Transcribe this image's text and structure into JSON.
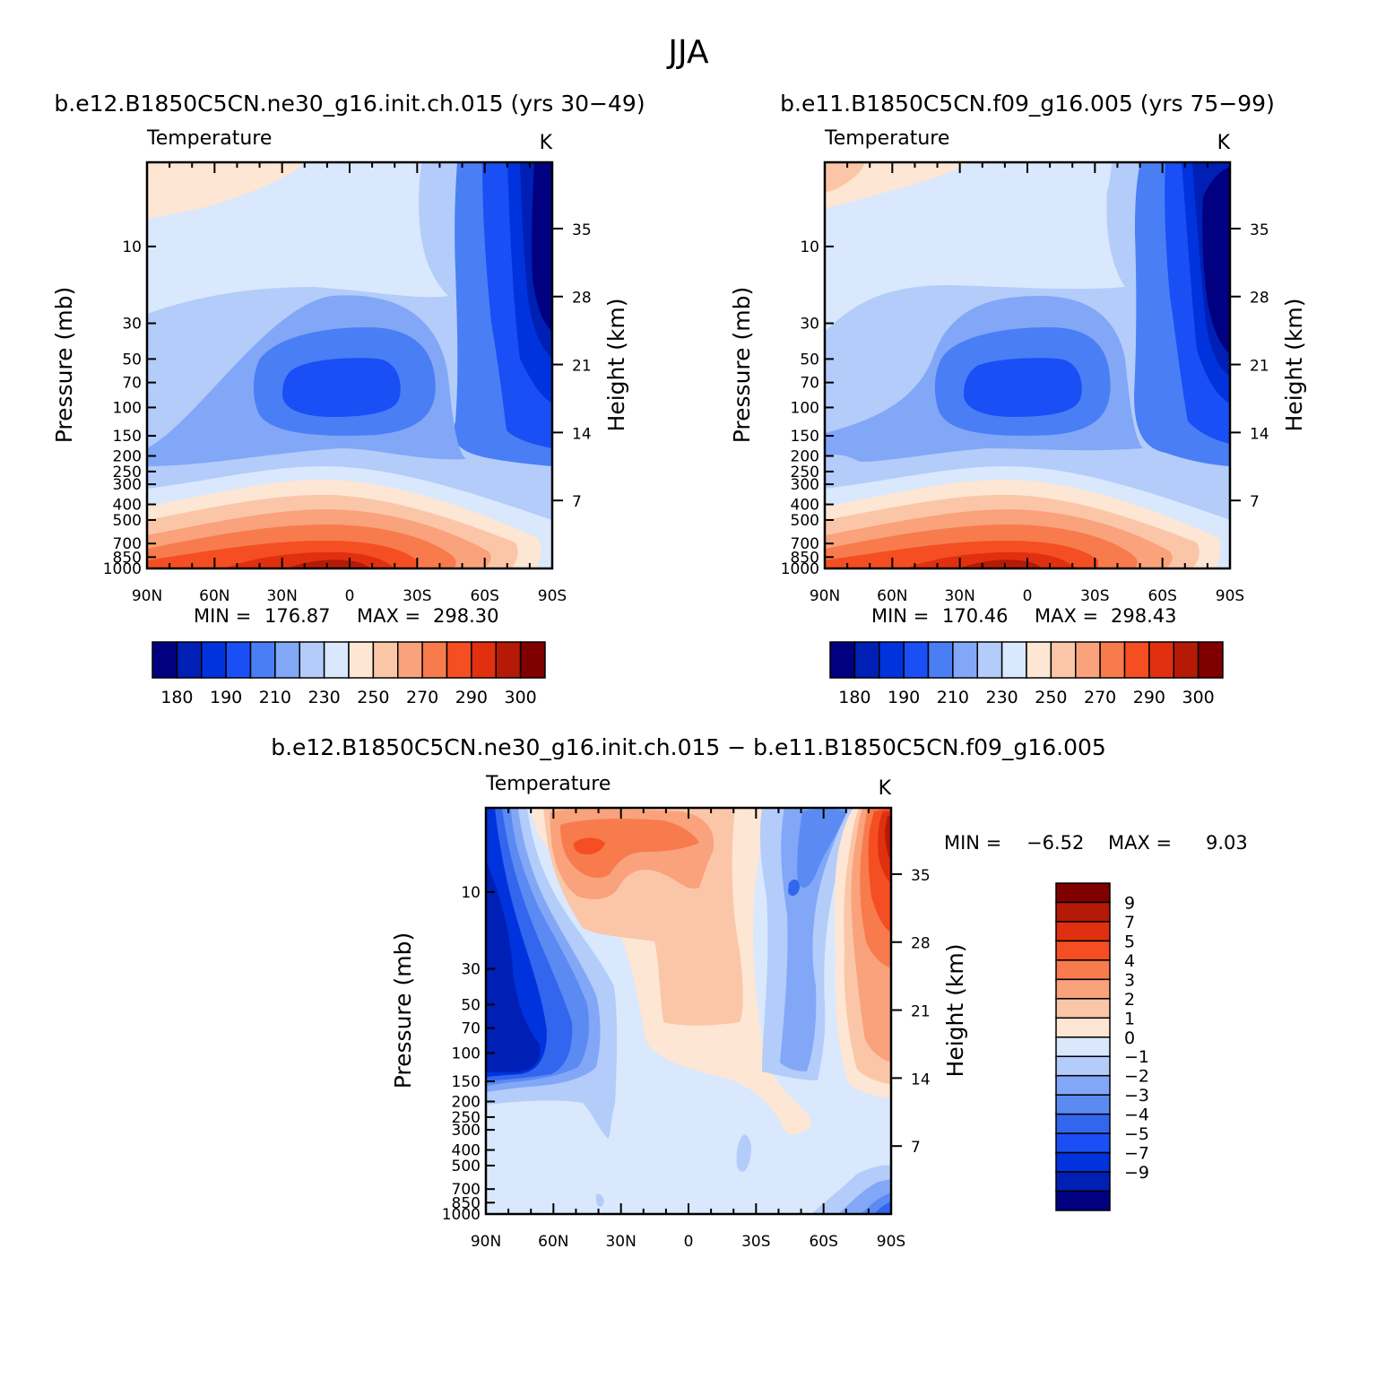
{
  "figure_title": "JJA",
  "colors": {
    "temp_scale": [
      "#000080",
      "#001fb5",
      "#0033dd",
      "#1a4ff5",
      "#4a7ef5",
      "#82a7f7",
      "#b3ccfa",
      "#d9e8fc",
      "#fde6d3",
      "#fbc6a8",
      "#f9a27c",
      "#f77b4d",
      "#f44e22",
      "#e03010",
      "#b51a07",
      "#800000"
    ],
    "diff_scale": [
      "#000080",
      "#001fb5",
      "#0033dd",
      "#1a4ff5",
      "#3366ee",
      "#5b8af3",
      "#82a7f7",
      "#b3ccfa",
      "#d9e8fc",
      "#fde6d3",
      "#fbc6a8",
      "#f9a27c",
      "#f77b4d",
      "#f44e22",
      "#e03010",
      "#b51a07",
      "#800000"
    ]
  },
  "chart_data": [
    {
      "type": "heatmap",
      "id": "panel1",
      "title": "b.e12.B1850C5CN.ne30_g16.init.ch.015 (yrs 30−49)",
      "variable": "Temperature",
      "units": "K",
      "ylabel": "Pressure (mb)",
      "ylabel_right": "Height (km)",
      "x_tick_labels": [
        "90N",
        "60N",
        "30N",
        "0",
        "30S",
        "60S",
        "90S"
      ],
      "y_tick_labels": [
        "10",
        "30",
        "50",
        "70",
        "100",
        "150",
        "200",
        "250",
        "300",
        "400",
        "500",
        "700",
        "850",
        "1000"
      ],
      "y_tick_values": [
        10,
        30,
        50,
        70,
        100,
        150,
        200,
        250,
        300,
        400,
        500,
        700,
        850,
        1000
      ],
      "height_tick_labels": [
        "35",
        "28",
        "21",
        "14",
        "7"
      ],
      "height_tick_values": [
        35,
        28,
        21,
        14,
        7
      ],
      "ylim_mb": [
        3,
        1000
      ],
      "min_label": "MIN =",
      "min_value": "176.87",
      "max_label": "MAX =",
      "max_value": "298.30",
      "colorbar_labels": [
        "180",
        "190",
        "210",
        "230",
        "250",
        "270",
        "290",
        "300"
      ]
    },
    {
      "type": "heatmap",
      "id": "panel2",
      "title": "b.e11.B1850C5CN.f09_g16.005 (yrs 75−99)",
      "variable": "Temperature",
      "units": "K",
      "ylabel": "Pressure (mb)",
      "ylabel_right": "Height (km)",
      "x_tick_labels": [
        "90N",
        "60N",
        "30N",
        "0",
        "30S",
        "60S",
        "90S"
      ],
      "y_tick_labels": [
        "10",
        "30",
        "50",
        "70",
        "100",
        "150",
        "200",
        "250",
        "300",
        "400",
        "500",
        "700",
        "850",
        "1000"
      ],
      "y_tick_values": [
        10,
        30,
        50,
        70,
        100,
        150,
        200,
        250,
        300,
        400,
        500,
        700,
        850,
        1000
      ],
      "height_tick_labels": [
        "35",
        "28",
        "21",
        "14",
        "7"
      ],
      "height_tick_values": [
        35,
        28,
        21,
        14,
        7
      ],
      "ylim_mb": [
        3,
        1000
      ],
      "min_label": "MIN =",
      "min_value": "170.46",
      "max_label": "MAX =",
      "max_value": "298.43",
      "colorbar_labels": [
        "180",
        "190",
        "210",
        "230",
        "250",
        "270",
        "290",
        "300"
      ]
    },
    {
      "type": "heatmap",
      "id": "panel3",
      "title": "b.e12.B1850C5CN.ne30_g16.init.ch.015 − b.e11.B1850C5CN.f09_g16.005",
      "variable": "Temperature",
      "units": "K",
      "ylabel": "Pressure (mb)",
      "ylabel_right": "Height (km)",
      "x_tick_labels": [
        "90N",
        "60N",
        "30N",
        "0",
        "30S",
        "60S",
        "90S"
      ],
      "y_tick_labels": [
        "10",
        "30",
        "50",
        "70",
        "100",
        "150",
        "200",
        "250",
        "300",
        "400",
        "500",
        "700",
        "850",
        "1000"
      ],
      "y_tick_values": [
        10,
        30,
        50,
        70,
        100,
        150,
        200,
        250,
        300,
        400,
        500,
        700,
        850,
        1000
      ],
      "height_tick_labels": [
        "35",
        "28",
        "21",
        "14",
        "7"
      ],
      "height_tick_values": [
        35,
        28,
        21,
        14,
        7
      ],
      "ylim_mb": [
        3,
        1000
      ],
      "min_label": "MIN =",
      "min_value": "−6.52",
      "max_label": "MAX =",
      "max_value": "9.03",
      "colorbar_labels": [
        "9",
        "7",
        "5",
        "4",
        "3",
        "2",
        "1",
        "0",
        "−1",
        "−2",
        "−3",
        "−4",
        "−5",
        "−7",
        "−9"
      ]
    }
  ]
}
